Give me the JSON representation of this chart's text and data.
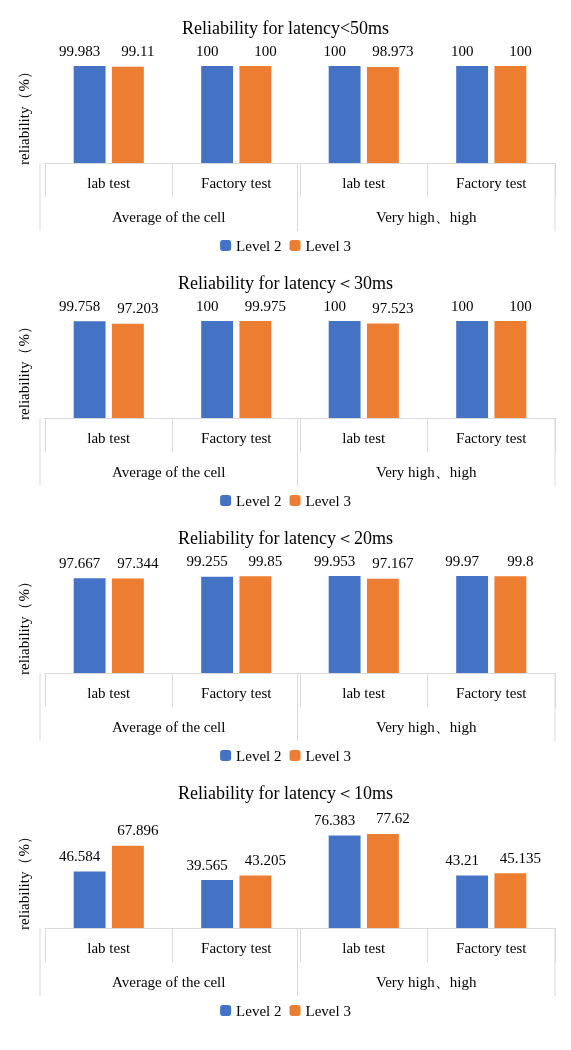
{
  "chart_data": [
    {
      "type": "bar",
      "title": "Reliability for latency<50ms",
      "ylabel": "reliability（%）",
      "categories": [
        "lab test",
        "Factory test",
        "lab test",
        "Factory test"
      ],
      "annotations": [
        "Average of the cell",
        "Very high、high"
      ],
      "data_labels": true,
      "grid": false,
      "legend": "bottom",
      "series": [
        {
          "name": "Level 2",
          "color": "#4472c4",
          "values": [
            99.983,
            100,
            100,
            100
          ]
        },
        {
          "name": "Level 3",
          "color": "#ed7d31",
          "values": [
            99.11,
            100,
            98.973,
            100
          ]
        }
      ]
    },
    {
      "type": "bar",
      "title": "Reliability for latency＜30ms",
      "ylabel": "reliability（%）",
      "categories": [
        "lab test",
        "Factory test",
        "lab test",
        "Factory test"
      ],
      "annotations": [
        "Average of the cell",
        "Very high、high"
      ],
      "data_labels": true,
      "grid": false,
      "legend": "bottom",
      "series": [
        {
          "name": "Level 2",
          "color": "#4472c4",
          "values": [
            99.758,
            100,
            100,
            100
          ]
        },
        {
          "name": "Level 3",
          "color": "#ed7d31",
          "values": [
            97.203,
            99.975,
            97.523,
            100
          ]
        }
      ]
    },
    {
      "type": "bar",
      "title": "Reliability for latency＜20ms",
      "ylabel": "reliability（%）",
      "categories": [
        "lab test",
        "Factory test",
        "lab test",
        "Factory test"
      ],
      "annotations": [
        "Average of the cell",
        "Very high、high"
      ],
      "data_labels": true,
      "grid": false,
      "legend": "bottom",
      "series": [
        {
          "name": "Level 2",
          "color": "#4472c4",
          "values": [
            97.667,
            99.255,
            99.953,
            99.97
          ]
        },
        {
          "name": "Level 3",
          "color": "#ed7d31",
          "values": [
            97.344,
            99.85,
            97.167,
            99.8
          ]
        }
      ]
    },
    {
      "type": "bar",
      "title": "Reliability for latency＜10ms",
      "ylabel": "reliability（%）",
      "categories": [
        "lab test",
        "Factory test",
        "lab test",
        "Factory test"
      ],
      "annotations": [
        "Average of the cell",
        "Very high、high"
      ],
      "data_labels": true,
      "grid": false,
      "legend": "bottom",
      "series": [
        {
          "name": "Level 2",
          "color": "#4472c4",
          "values": [
            46.584,
            39.565,
            76.383,
            43.21
          ]
        },
        {
          "name": "Level 3",
          "color": "#ed7d31",
          "values": [
            67.896,
            43.205,
            77.62,
            45.135
          ]
        }
      ]
    }
  ]
}
